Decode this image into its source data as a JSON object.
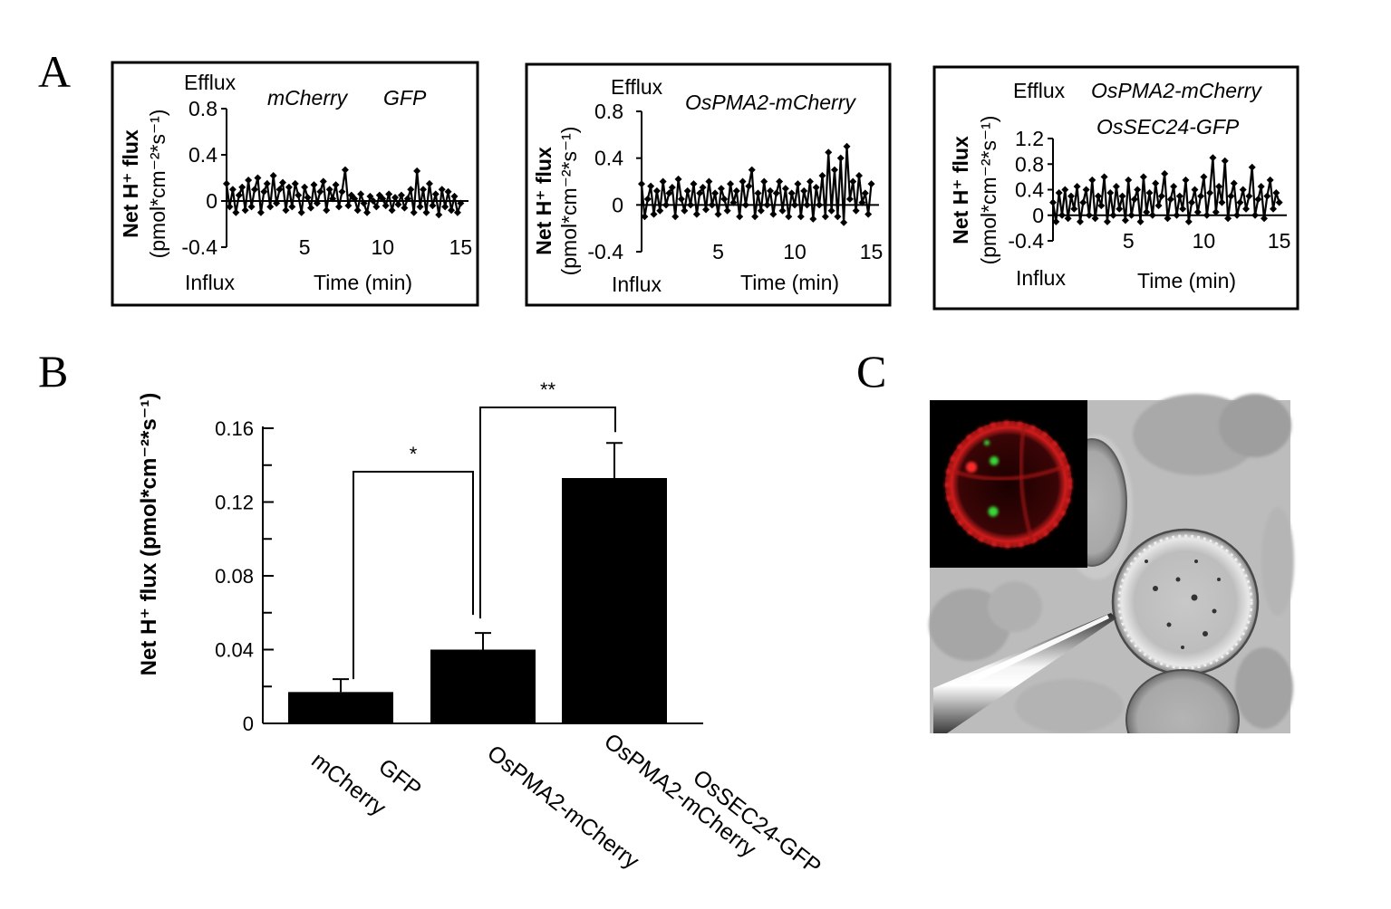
{
  "panels": {
    "A": "A",
    "B": "B",
    "C": "C"
  },
  "chart_data": [
    {
      "type": "line",
      "panel": "A",
      "labels": [
        "mCherry",
        "GFP"
      ],
      "efflux_label": "Efflux",
      "influx_label": "Influx",
      "ylabel_line1": "Net H⁺ flux",
      "ylabel_line2": "(pmol*cm⁻²*s⁻¹)",
      "xlabel": "Time (min)",
      "yticks": [
        "0.8",
        "0.4",
        "0",
        "-0.4"
      ],
      "xticks": [
        "5",
        "10",
        "15"
      ],
      "xlim": [
        0,
        15.5
      ],
      "ylim": [
        -0.4,
        0.8
      ],
      "yticks_num": [
        0.8,
        0.4,
        0,
        -0.4
      ],
      "xticks_num": [
        5,
        10,
        15
      ],
      "x": [
        0.0,
        0.2,
        0.4,
        0.6,
        0.8,
        1.0,
        1.2,
        1.4,
        1.6,
        1.8,
        2.0,
        2.2,
        2.4,
        2.6,
        2.8,
        3.0,
        3.2,
        3.4,
        3.6,
        3.8,
        4.0,
        4.2,
        4.4,
        4.6,
        4.8,
        5.0,
        5.2,
        5.4,
        5.6,
        5.8,
        6.0,
        6.2,
        6.4,
        6.6,
        6.8,
        7.0,
        7.2,
        7.4,
        7.6,
        7.8,
        8.0,
        8.2,
        8.4,
        8.6,
        8.8,
        9.0,
        9.2,
        9.4,
        9.6,
        9.8,
        10.0,
        10.2,
        10.4,
        10.6,
        10.8,
        11.0,
        11.2,
        11.4,
        11.6,
        11.8,
        12.0,
        12.2,
        12.4,
        12.6,
        12.8,
        13.0,
        13.2,
        13.4,
        13.6,
        13.8,
        14.0,
        14.2,
        14.4,
        14.6,
        14.8,
        15.0
      ],
      "y": [
        0.15,
        -0.05,
        0.1,
        -0.1,
        0.05,
        0.12,
        -0.08,
        0.18,
        -0.05,
        0.1,
        0.2,
        -0.1,
        0.08,
        0.15,
        -0.05,
        0.22,
        -0.02,
        0.1,
        0.16,
        -0.08,
        0.12,
        -0.05,
        0.15,
        0.05,
        -0.1,
        0.12,
        0.03,
        -0.06,
        0.14,
        -0.02,
        0.08,
        0.17,
        -0.08,
        0.1,
        0.02,
        0.14,
        -0.05,
        0.08,
        0.27,
        -0.04,
        0.05,
        0.02,
        -0.08,
        0.06,
        -0.02,
        -0.1,
        0.04,
        0.0,
        -0.05,
        0.05,
        0.02,
        -0.04,
        0.06,
        -0.08,
        0.03,
        -0.03,
        0.05,
        -0.06,
        0.02,
        0.1,
        -0.1,
        0.26,
        -0.05,
        0.1,
        -0.1,
        0.15,
        -0.04,
        0.06,
        -0.12,
        0.1,
        -0.05,
        0.08,
        -0.08,
        0.04,
        -0.1,
        -0.02
      ]
    },
    {
      "type": "line",
      "panel": "A",
      "labels": [
        "OsPMA2-mCherry"
      ],
      "efflux_label": "Efflux",
      "influx_label": "Influx",
      "ylabel_line1": "Net H⁺ flux",
      "ylabel_line2": "(pmol*cm⁻²*s⁻¹)",
      "xlabel": "Time (min)",
      "yticks": [
        "0.8",
        "0.4",
        "0",
        "-0.4"
      ],
      "xticks": [
        "5",
        "10",
        "15"
      ],
      "xlim": [
        0,
        15.5
      ],
      "ylim": [
        -0.4,
        0.8
      ],
      "yticks_num": [
        0.8,
        0.4,
        0,
        -0.4
      ],
      "xticks_num": [
        5,
        10,
        15
      ],
      "x": [
        0.0,
        0.2,
        0.4,
        0.6,
        0.8,
        1.0,
        1.2,
        1.4,
        1.6,
        1.8,
        2.0,
        2.2,
        2.4,
        2.6,
        2.8,
        3.0,
        3.2,
        3.4,
        3.6,
        3.8,
        4.0,
        4.2,
        4.4,
        4.6,
        4.8,
        5.0,
        5.2,
        5.4,
        5.6,
        5.8,
        6.0,
        6.2,
        6.4,
        6.6,
        6.8,
        7.0,
        7.2,
        7.4,
        7.6,
        7.8,
        8.0,
        8.2,
        8.4,
        8.6,
        8.8,
        9.0,
        9.2,
        9.4,
        9.6,
        9.8,
        10.0,
        10.2,
        10.4,
        10.6,
        10.8,
        11.0,
        11.2,
        11.4,
        11.6,
        11.8,
        12.0,
        12.2,
        12.4,
        12.6,
        12.8,
        13.0,
        13.2,
        13.4,
        13.6,
        13.8,
        14.0,
        14.2,
        14.4,
        14.6,
        14.8,
        15.0
      ],
      "y": [
        0.18,
        -0.1,
        0.05,
        0.16,
        -0.08,
        0.12,
        -0.05,
        0.2,
        0.0,
        0.1,
        0.15,
        -0.1,
        0.22,
        0.05,
        -0.05,
        0.12,
        0.0,
        0.18,
        -0.08,
        0.1,
        0.15,
        -0.04,
        0.2,
        0.0,
        0.1,
        -0.08,
        0.14,
        0.05,
        -0.05,
        0.18,
        0.02,
        0.12,
        -0.1,
        0.2,
        0.0,
        0.16,
        0.3,
        -0.1,
        0.1,
        -0.05,
        0.2,
        0.0,
        0.12,
        -0.08,
        0.1,
        0.2,
        -0.05,
        0.14,
        -0.1,
        0.1,
        0.0,
        0.18,
        -0.1,
        0.12,
        0.0,
        0.2,
        -0.12,
        0.15,
        0.0,
        0.25,
        -0.1,
        0.45,
        -0.05,
        0.3,
        -0.1,
        0.4,
        -0.15,
        0.5,
        0.05,
        0.2,
        -0.05,
        0.25,
        0.02,
        0.1,
        -0.08,
        0.18
      ]
    },
    {
      "type": "line",
      "panel": "A",
      "labels": [
        "OsPMA2-mCherry",
        "OsSEC24-GFP"
      ],
      "efflux_label": "Efflux",
      "influx_label": "Influx",
      "ylabel_line1": "Net H⁺ flux",
      "ylabel_line2": "(pmol*cm⁻²*s⁻¹)",
      "xlabel": "Time (min)",
      "yticks": [
        "1.2",
        "0.8",
        "0.4",
        "0",
        "-0.4"
      ],
      "xticks": [
        "5",
        "10",
        "15"
      ],
      "xlim": [
        0,
        15.5
      ],
      "ylim": [
        -0.4,
        1.2
      ],
      "yticks_num": [
        1.2,
        0.8,
        0.4,
        0,
        -0.4
      ],
      "xticks_num": [
        5,
        10,
        15
      ],
      "x": [
        0.0,
        0.2,
        0.4,
        0.6,
        0.8,
        1.0,
        1.2,
        1.4,
        1.6,
        1.8,
        2.0,
        2.2,
        2.4,
        2.6,
        2.8,
        3.0,
        3.2,
        3.4,
        3.6,
        3.8,
        4.0,
        4.2,
        4.4,
        4.6,
        4.8,
        5.0,
        5.2,
        5.4,
        5.6,
        5.8,
        6.0,
        6.2,
        6.4,
        6.6,
        6.8,
        7.0,
        7.2,
        7.4,
        7.6,
        7.8,
        8.0,
        8.2,
        8.4,
        8.6,
        8.8,
        9.0,
        9.2,
        9.4,
        9.6,
        9.8,
        10.0,
        10.2,
        10.4,
        10.6,
        10.8,
        11.0,
        11.2,
        11.4,
        11.6,
        11.8,
        12.0,
        12.2,
        12.4,
        12.6,
        12.8,
        13.0,
        13.2,
        13.4,
        13.6,
        13.8,
        14.0,
        14.2,
        14.4,
        14.6,
        14.8,
        15.0
      ],
      "y": [
        0.2,
        -0.1,
        0.35,
        0.0,
        0.4,
        -0.05,
        0.3,
        0.1,
        0.45,
        -0.1,
        0.2,
        0.4,
        0.0,
        0.55,
        -0.05,
        0.3,
        0.15,
        0.6,
        -0.1,
        0.35,
        0.0,
        0.45,
        0.1,
        0.3,
        -0.08,
        0.55,
        0.0,
        0.25,
        0.4,
        -0.1,
        0.6,
        0.05,
        0.35,
        0.0,
        0.5,
        0.15,
        0.3,
        0.65,
        -0.05,
        0.25,
        0.45,
        0.0,
        0.3,
        0.1,
        0.55,
        -0.1,
        0.2,
        0.4,
        0.05,
        0.3,
        0.6,
        0.0,
        0.35,
        0.9,
        0.05,
        0.45,
        0.2,
        0.85,
        -0.05,
        0.3,
        0.5,
        0.0,
        0.2,
        0.4,
        0.1,
        0.3,
        0.75,
        0.0,
        0.25,
        0.45,
        -0.05,
        0.3,
        0.55,
        0.1,
        0.35,
        0.2
      ]
    },
    {
      "type": "bar",
      "panel": "B",
      "categories": [
        {
          "lines": [
            "mCherry",
            "GFP"
          ]
        },
        {
          "lines": [
            "OsPMA2-mCherry"
          ]
        },
        {
          "lines": [
            "OsPMA2-mCherry",
            "OsSEC24-GFP"
          ]
        }
      ],
      "values": [
        0.017,
        0.04,
        0.133
      ],
      "errors": [
        0.007,
        0.009,
        0.019
      ],
      "ylabel": "Net H⁺ flux (pmol*cm⁻²*s⁻¹)",
      "yticks": [
        "0.16",
        "0.12",
        "0.08",
        "0.04",
        "0"
      ],
      "yticks_num": [
        0.16,
        0.12,
        0.08,
        0.04,
        0
      ],
      "ylim": [
        0,
        0.16
      ],
      "significance": [
        {
          "from": 0,
          "to": 1,
          "label": "*"
        },
        {
          "from": 1,
          "to": 2,
          "label": "**"
        }
      ]
    }
  ],
  "image_c": {
    "description_icon": "protoplast-micrograph-with-microelectrode"
  }
}
